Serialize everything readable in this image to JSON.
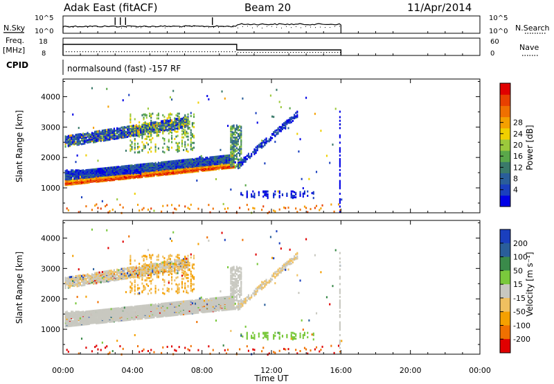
{
  "header": {
    "station": "Adak East (fitACF)",
    "beam": "Beam 20",
    "date": "11/Apr/2014"
  },
  "summary": {
    "nsky_label": "N.Sky",
    "nsky_ticks": [
      "10^5",
      "10^0"
    ],
    "nsearch_label": "N.Search",
    "nsearch_ticks": [
      "10^5",
      "10^0"
    ],
    "freq_label_1": "Freq.",
    "freq_label_2": "[MHz]",
    "freq_ticks": [
      "18",
      "8"
    ],
    "nave_label": "Nave",
    "nave_ticks": [
      "60",
      "0"
    ],
    "cpid_label": "CPID",
    "cpid_text": "normalsound (fast) -157 RF"
  },
  "chart_data": [
    {
      "type": "heatmap",
      "name": "power",
      "xlabel": "Time UT",
      "ylabel": "Slant Range [km]",
      "x_ticks": [
        "00:00",
        "04:00",
        "08:00",
        "12:00",
        "16:00",
        "20:00",
        "00:00"
      ],
      "x_range_hours": [
        0,
        24
      ],
      "y_ticks": [
        1000,
        2000,
        3000,
        4000
      ],
      "y_range_km": [
        180,
        4580
      ],
      "data_extent_hours": [
        0,
        16
      ],
      "colorbar": {
        "label": "Power [dB]",
        "ticks": [
          4,
          8,
          12,
          16,
          20,
          24,
          28
        ],
        "colors": [
          "#0000e6",
          "#1a3fbe",
          "#2a5e9a",
          "#3a7a6a",
          "#5aa84a",
          "#9cc93c",
          "#f0d000",
          "#f5a000",
          "#f07000",
          "#e84000",
          "#e00000"
        ]
      },
      "features": [
        {
          "desc": "main band",
          "hours": [
            0,
            9.8
          ],
          "km_start": [
            1150,
            1220
          ],
          "km_end": [
            1700,
            1800
          ]
        },
        {
          "desc": "upper band",
          "hours": [
            0,
            7.2
          ],
          "km_start": [
            2400,
            2700
          ],
          "km_end": [
            3000,
            3300
          ]
        }
      ]
    },
    {
      "type": "heatmap",
      "name": "velocity",
      "xlabel": "Time UT",
      "ylabel": "Slant Range [km]",
      "x_ticks": [
        "00:00",
        "04:00",
        "08:00",
        "12:00",
        "16:00",
        "20:00",
        "00:00"
      ],
      "y_ticks": [
        1000,
        2000,
        3000,
        4000
      ],
      "colorbar": {
        "label": "Velocity [m s⁻¹]",
        "ticks": [
          200,
          100,
          50,
          15,
          -15,
          -50,
          -100,
          -200
        ],
        "colors": [
          "#1a3fbe",
          "#2a5e9a",
          "#3a8a4a",
          "#7ac83c",
          "#c8c8c0",
          "#f0c060",
          "#f5a000",
          "#f07000",
          "#e00000"
        ]
      }
    }
  ]
}
